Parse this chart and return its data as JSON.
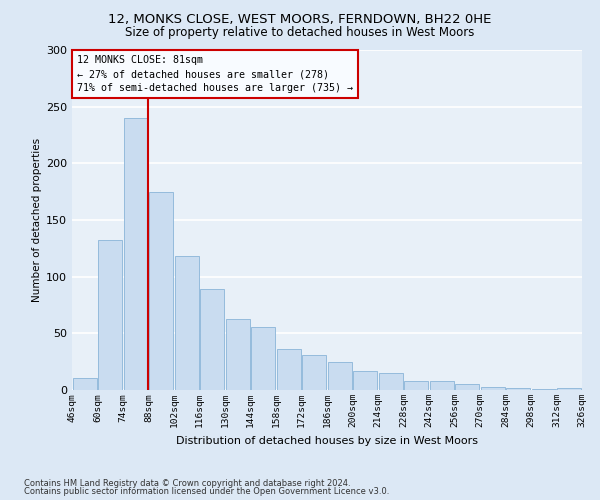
{
  "title": "12, MONKS CLOSE, WEST MOORS, FERNDOWN, BH22 0HE",
  "subtitle": "Size of property relative to detached houses in West Moors",
  "xlabel": "Distribution of detached houses by size in West Moors",
  "ylabel": "Number of detached properties",
  "bar_values": [
    11,
    132,
    240,
    175,
    118,
    89,
    63,
    56,
    36,
    31,
    25,
    17,
    15,
    8,
    8,
    5,
    3,
    2,
    1,
    2
  ],
  "bin_labels": [
    "46sqm",
    "60sqm",
    "74sqm",
    "88sqm",
    "102sqm",
    "116sqm",
    "130sqm",
    "144sqm",
    "158sqm",
    "172sqm",
    "186sqm",
    "200sqm",
    "214sqm",
    "228sqm",
    "242sqm",
    "256sqm",
    "270sqm",
    "284sqm",
    "298sqm",
    "312sqm",
    "326sqm"
  ],
  "bar_color": "#c9dcf0",
  "bar_edge_color": "#8ab4d8",
  "fig_background_color": "#dce8f5",
  "axes_background_color": "#e8f0f8",
  "grid_color": "#ffffff",
  "annotation_line1": "12 MONKS CLOSE: 81sqm",
  "annotation_line2": "← 27% of detached houses are smaller (278)",
  "annotation_line3": "71% of semi-detached houses are larger (735) →",
  "annotation_box_facecolor": "#f8fbff",
  "annotation_box_edgecolor": "#cc0000",
  "vline_color": "#cc0000",
  "vline_x_bar_index": 2,
  "ylim": [
    0,
    300
  ],
  "yticks": [
    0,
    50,
    100,
    150,
    200,
    250,
    300
  ],
  "footnote1": "Contains HM Land Registry data © Crown copyright and database right 2024.",
  "footnote2": "Contains public sector information licensed under the Open Government Licence v3.0."
}
